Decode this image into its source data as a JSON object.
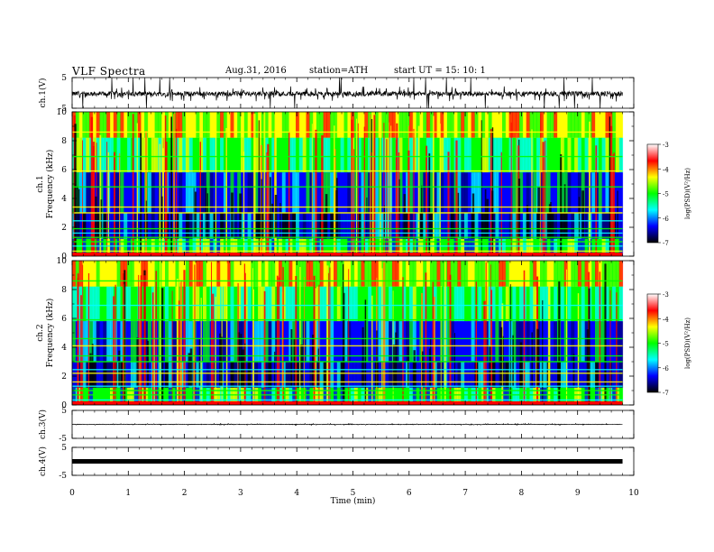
{
  "header": {
    "title": "VLF  Spectra",
    "date": "Aug.31, 2016",
    "station": "station=ATH",
    "start": "start  UT  =    15: 10: 1"
  },
  "chart_data": [
    {
      "type": "line",
      "panel": "ch1-waveform",
      "ylabel": "ch.1(V)",
      "ylim": [
        -5,
        5
      ],
      "yticks": [
        "5",
        "-5"
      ],
      "xlim": [
        0,
        10
      ],
      "data_end_min": 9.8,
      "series": [
        {
          "baseline_V": -0.3,
          "amplitude_V": 2.5
        }
      ],
      "line_color": "#000000"
    },
    {
      "type": "heatmap",
      "panel": "ch1-spectrogram",
      "ylabel": "ch.1  Frequency (kHz)",
      "ylabel_line1": "ch.1",
      "ylabel_line2": "Frequency  (kHz)",
      "ylim": [
        0,
        10
      ],
      "yticks": [
        "0",
        "2",
        "4",
        "6",
        "8",
        "10"
      ],
      "xlim": [
        0,
        10
      ],
      "data_end_min": 9.8,
      "colorbar": {
        "label": "log(PSD)(V²/Hz)",
        "range": [
          -7,
          -3
        ],
        "ticks": [
          "-3",
          "-4",
          "-5",
          "-6",
          "-7"
        ],
        "colors": [
          "#ffffff",
          "#ff0000",
          "#ffff00",
          "#00ff00",
          "#00ffff",
          "#0000ff",
          "#000000"
        ]
      },
      "lines_kHz": [
        0.35,
        0.7,
        1.0,
        1.3,
        1.6,
        1.9,
        2.45,
        3.0,
        3.4,
        4.8,
        5.9,
        6.9,
        8.6
      ]
    },
    {
      "type": "heatmap",
      "panel": "ch2-spectrogram",
      "ylabel_line1": "ch.2",
      "ylabel_line2": "Frequency  (kHz)",
      "ylim": [
        0,
        10
      ],
      "yticks": [
        "0",
        "2",
        "4",
        "6",
        "8",
        "10"
      ],
      "xlim": [
        0,
        10
      ],
      "data_end_min": 9.8,
      "colorbar": {
        "label": "log(PSD)(V²/Hz)",
        "range": [
          -7,
          -3
        ],
        "ticks": [
          "-3",
          "-4",
          "-5",
          "-6",
          "-7"
        ],
        "colors": [
          "#ffffff",
          "#ff0000",
          "#ffff00",
          "#00ff00",
          "#00ffff",
          "#0000ff",
          "#000000"
        ]
      },
      "lines_kHz": [
        0.35,
        0.7,
        1.0,
        1.3,
        1.6,
        2.2,
        2.45,
        3.0,
        3.4,
        4.1,
        4.6,
        5.9,
        6.9,
        8.6
      ]
    },
    {
      "type": "line",
      "panel": "ch3-waveform",
      "ylabel": "ch.3(V)",
      "ylim": [
        -5,
        5
      ],
      "yticks": [
        "5",
        "-5"
      ],
      "xlim": [
        0,
        10
      ],
      "data_end_min": 9.8,
      "series": [
        {
          "baseline_V": 0.0,
          "amplitude_V": 0.3
        }
      ],
      "line_color": "#000000"
    },
    {
      "type": "line",
      "panel": "ch4-waveform",
      "ylabel": "ch.4(V)",
      "ylim": [
        -5,
        5
      ],
      "yticks": [
        "5",
        "-5"
      ],
      "xlim": [
        0,
        10
      ],
      "data_end_min": 9.8,
      "series": [
        {
          "baseline_V": 0.0,
          "amplitude_V": 0.0
        }
      ],
      "line_color": "#000000"
    }
  ],
  "xaxis": {
    "label": "Time  (min)",
    "ticks": [
      "0",
      "1",
      "2",
      "3",
      "4",
      "5",
      "6",
      "7",
      "8",
      "9",
      "10"
    ]
  }
}
